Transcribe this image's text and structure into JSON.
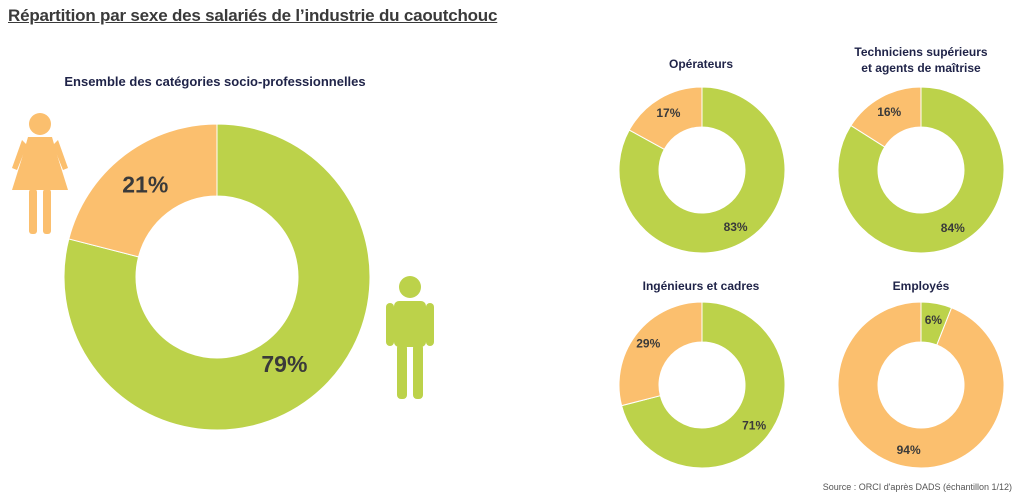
{
  "title": "Répartition par sexe des salariés de l’industrie du caoutchouc",
  "source": "Source : ORCI d'après DADS (échantillon 1/12)",
  "colors": {
    "women": "#fbbf6e",
    "men": "#bcd24a"
  },
  "icons": {
    "women": "woman-icon",
    "men": "man-icon"
  },
  "chart_data": [
    {
      "type": "pie",
      "title": "Ensemble des catégories socio-professionnelles",
      "categories": [
        "Femmes",
        "Hommes"
      ],
      "values": [
        21,
        79
      ],
      "labels": [
        "21%",
        "79%"
      ]
    },
    {
      "type": "pie",
      "title": "Opérateurs",
      "categories": [
        "Femmes",
        "Hommes"
      ],
      "values": [
        17,
        83
      ],
      "labels": [
        "17%",
        "83%"
      ]
    },
    {
      "type": "pie",
      "title_lines": [
        "Techniciens supérieurs",
        "et agents de maîtrise"
      ],
      "categories": [
        "Femmes",
        "Hommes"
      ],
      "values": [
        16,
        84
      ],
      "labels": [
        "16%",
        "84%"
      ]
    },
    {
      "type": "pie",
      "title": "Ingénieurs et cadres",
      "categories": [
        "Femmes",
        "Hommes"
      ],
      "values": [
        29,
        71
      ],
      "labels": [
        "29%",
        "71%"
      ]
    },
    {
      "type": "pie",
      "title": "Employés",
      "categories": [
        "Femmes",
        "Hommes"
      ],
      "values": [
        94,
        6
      ],
      "labels": [
        "94%",
        "6%"
      ]
    }
  ]
}
